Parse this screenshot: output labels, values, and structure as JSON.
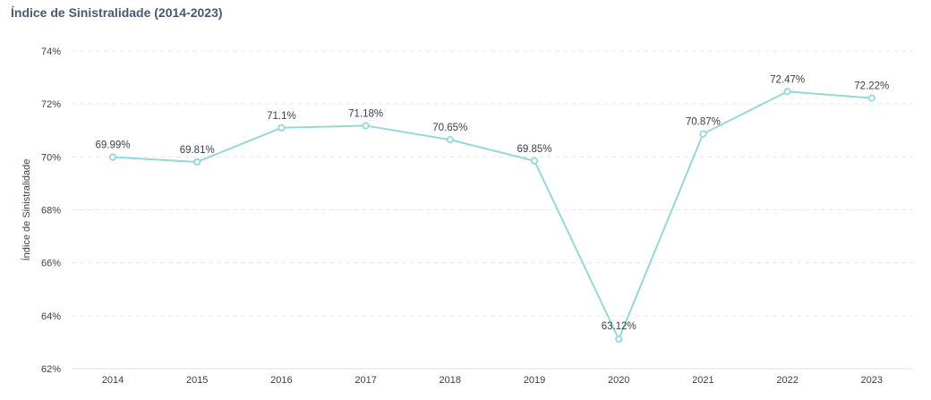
{
  "chart_data": {
    "type": "line",
    "title": "Índice de Sinistralidade (2014-2023)",
    "xlabel": "",
    "ylabel": "Índice de Sinistralidade",
    "categories": [
      "2014",
      "2015",
      "2016",
      "2017",
      "2018",
      "2019",
      "2020",
      "2021",
      "2022",
      "2023"
    ],
    "series": [
      {
        "values": [
          69.99,
          69.81,
          71.1,
          71.18,
          70.65,
          69.85,
          63.12,
          70.87,
          72.47,
          72.22
        ],
        "labels": [
          "69.99%",
          "69.81%",
          "71.1%",
          "71.18%",
          "70.65%",
          "69.85%",
          "63.12%",
          "70.87%",
          "72.47%",
          "72.22%"
        ],
        "color": "#96d8d8"
      }
    ],
    "ylim": [
      62,
      74
    ],
    "yticks": [
      62,
      64,
      66,
      68,
      70,
      72,
      74
    ],
    "ytick_labels": [
      "62%",
      "64%",
      "66%",
      "68%",
      "70%",
      "72%",
      "74%"
    ],
    "grid": true,
    "legend": "none"
  }
}
